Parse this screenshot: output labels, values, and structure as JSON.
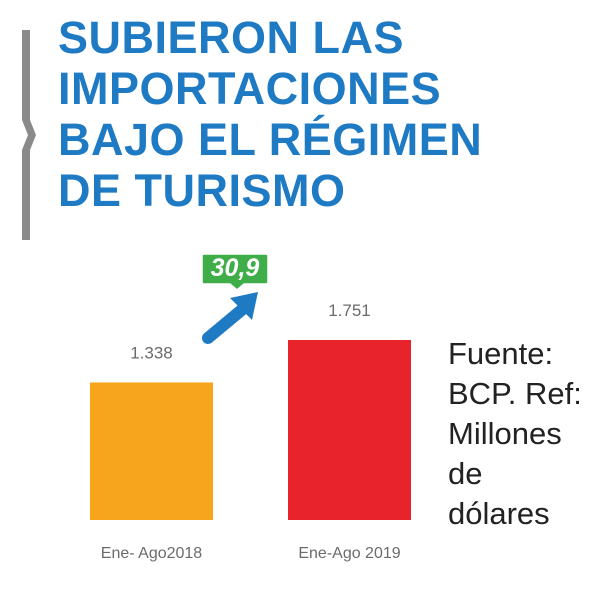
{
  "colors": {
    "title": "#1f7ac4",
    "accent_bar": "#8a8a8a",
    "bar_2018": "#f7a51c",
    "bar_2019": "#e8232b",
    "badge": "#3fae49",
    "arrow": "#1f7ac4",
    "labels": "#6b6b6b"
  },
  "title_lines": [
    "SUBIERON LAS",
    "IMPORTACIONES",
    "BAJO EL RÉGIMEN",
    "DE TURISMO"
  ],
  "change_badge": {
    "value": "30,9",
    "icon": "arrow-up-right-icon"
  },
  "source_lines": [
    "Fuente:",
    "BCP. Ref:",
    "Millones",
    "de",
    "dólares"
  ],
  "chart_data": {
    "type": "bar",
    "categories": [
      "Ene- Ago2018",
      "Ene-Ago 2019"
    ],
    "values": [
      1338,
      1751
    ],
    "value_labels": [
      "1.338",
      "1.751"
    ],
    "colors": [
      "#f7a51c",
      "#e8232b"
    ],
    "ylim": [
      0,
      1751
    ],
    "grid": false
  }
}
